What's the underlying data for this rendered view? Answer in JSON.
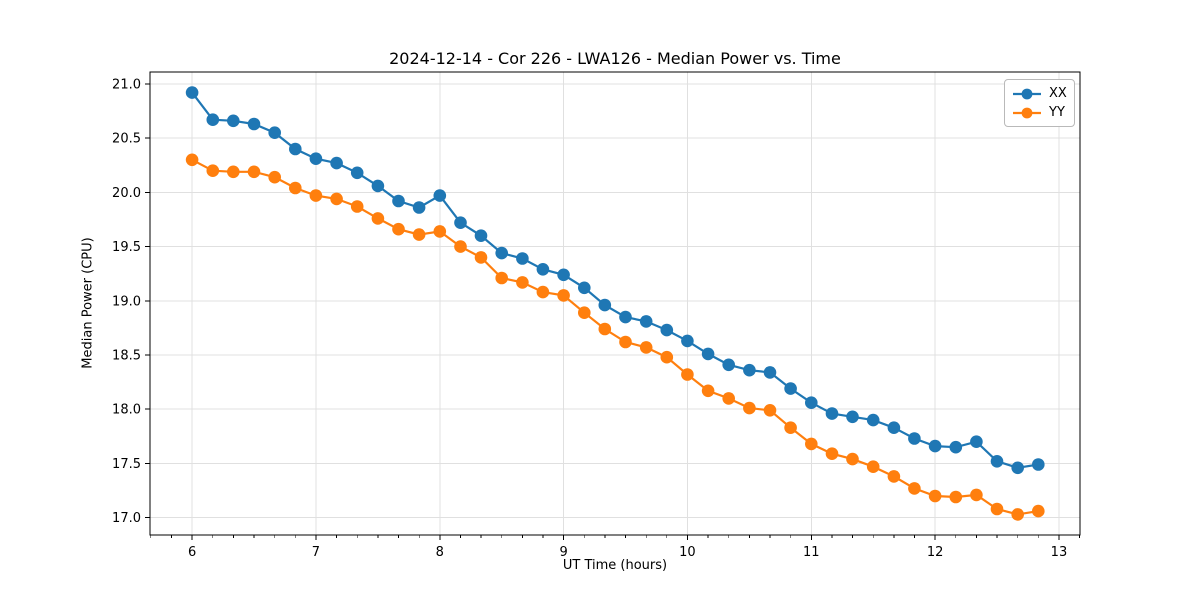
{
  "chart_data": {
    "type": "line",
    "title": "2024-12-14 - Cor 226 - LWA126 - Median Power vs. Time",
    "xlabel": "UT Time (hours)",
    "ylabel": "Median Power (CPU)",
    "xlim": [
      5.66,
      13.17
    ],
    "ylim": [
      16.84,
      21.11
    ],
    "xticks": [
      6,
      7,
      8,
      9,
      10,
      11,
      12,
      13
    ],
    "yticks": [
      17.0,
      17.5,
      18.0,
      18.5,
      19.0,
      19.5,
      20.0,
      20.5,
      21.0
    ],
    "x_minor_step": 0.16667,
    "grid": true,
    "legend_position": "upper right",
    "x": [
      6.0,
      6.167,
      6.333,
      6.5,
      6.667,
      6.833,
      7.0,
      7.167,
      7.333,
      7.5,
      7.667,
      7.833,
      8.0,
      8.167,
      8.333,
      8.5,
      8.667,
      8.833,
      9.0,
      9.167,
      9.333,
      9.5,
      9.667,
      9.833,
      10.0,
      10.167,
      10.333,
      10.5,
      10.667,
      10.833,
      11.0,
      11.167,
      11.333,
      11.5,
      11.667,
      11.833,
      12.0,
      12.167,
      12.333,
      12.5,
      12.667,
      12.833
    ],
    "series": [
      {
        "name": "XX",
        "color": "#1f77b4",
        "values": [
          20.92,
          20.67,
          20.66,
          20.63,
          20.55,
          20.4,
          20.31,
          20.27,
          20.18,
          20.06,
          19.92,
          19.86,
          19.97,
          19.72,
          19.6,
          19.44,
          19.39,
          19.29,
          19.24,
          19.12,
          18.96,
          18.85,
          18.81,
          18.73,
          18.63,
          18.51,
          18.41,
          18.36,
          18.34,
          18.19,
          18.06,
          17.96,
          17.93,
          17.9,
          17.83,
          17.73,
          17.66,
          17.65,
          17.7,
          17.52,
          17.46,
          17.49
        ]
      },
      {
        "name": "YY",
        "color": "#ff7f0e",
        "values": [
          20.3,
          20.2,
          20.19,
          20.19,
          20.14,
          20.04,
          19.97,
          19.94,
          19.87,
          19.76,
          19.66,
          19.61,
          19.64,
          19.5,
          19.4,
          19.21,
          19.17,
          19.08,
          19.05,
          18.89,
          18.74,
          18.62,
          18.57,
          18.48,
          18.32,
          18.17,
          18.1,
          18.01,
          17.99,
          17.83,
          17.68,
          17.59,
          17.54,
          17.47,
          17.38,
          17.27,
          17.2,
          17.19,
          17.21,
          17.08,
          17.03,
          17.06
        ]
      }
    ],
    "colors": {
      "grid": "#e0e0e0",
      "spine": "#000000",
      "tick": "#000000",
      "text": "#000000"
    }
  }
}
